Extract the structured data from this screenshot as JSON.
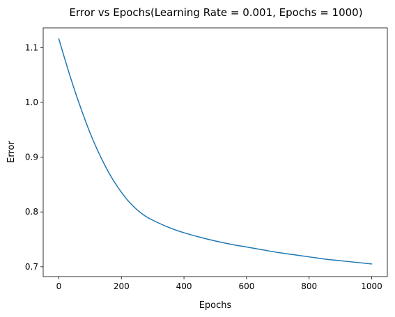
{
  "chart_data": {
    "type": "line",
    "title": "Error vs Epochs(Learning Rate = 0.001, Epochs = 1000)",
    "xlabel": "Epochs",
    "ylabel": "Error",
    "xlim": [
      -50,
      1050
    ],
    "ylim": [
      0.682,
      1.136
    ],
    "xticks": [
      0,
      200,
      400,
      600,
      800,
      1000
    ],
    "yticks": [
      0.7,
      0.8,
      0.9,
      1.0,
      1.1
    ],
    "xtick_labels": [
      "0",
      "200",
      "400",
      "600",
      "800",
      "1000"
    ],
    "ytick_labels": [
      "0.7",
      "0.8",
      "0.9",
      "1.0",
      "1.1"
    ],
    "grid": false,
    "series": [
      {
        "color": "#1f77b4",
        "x": [
          0,
          25,
          50,
          75,
          100,
          125,
          150,
          175,
          200,
          225,
          250,
          275,
          300,
          350,
          400,
          450,
          500,
          550,
          600,
          650,
          700,
          750,
          800,
          850,
          900,
          950,
          1000
        ],
        "y": [
          1.116,
          1.068,
          1.023,
          0.982,
          0.944,
          0.911,
          0.882,
          0.857,
          0.836,
          0.818,
          0.804,
          0.793,
          0.785,
          0.772,
          0.762,
          0.754,
          0.747,
          0.741,
          0.736,
          0.731,
          0.726,
          0.722,
          0.718,
          0.714,
          0.711,
          0.708,
          0.705
        ]
      }
    ]
  }
}
